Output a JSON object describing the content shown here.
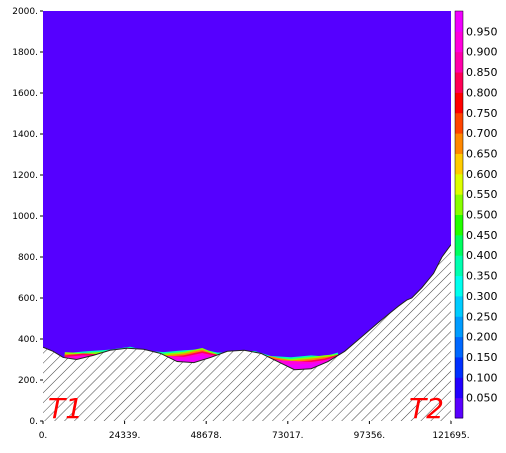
{
  "chart_data": {
    "type": "heatmap",
    "x_ticks": [
      "0.",
      "24339.",
      "48678.",
      "73017.",
      "97356.",
      "121695."
    ],
    "y_ticks": [
      "0.",
      "200.",
      "400.",
      "600.",
      "800.",
      "1000.",
      "1200.",
      "1400.",
      "1600.",
      "1800.",
      "2000."
    ],
    "xlim": [
      0,
      121695
    ],
    "ylim": [
      0,
      2000
    ],
    "background_value": 0.0,
    "background_color": "#5500ff",
    "colorbar": {
      "ticks": [
        "0.050",
        "0.100",
        "0.150",
        "0.200",
        "0.250",
        "0.300",
        "0.350",
        "0.400",
        "0.450",
        "0.500",
        "0.550",
        "0.600",
        "0.650",
        "0.700",
        "0.750",
        "0.800",
        "0.850",
        "0.900",
        "0.950"
      ],
      "colors": [
        "#5a00ff",
        "#2200ff",
        "#0030ff",
        "#0068ff",
        "#009cff",
        "#00ccff",
        "#00ffee",
        "#00ffb0",
        "#00ff60",
        "#22ff00",
        "#88ff00",
        "#ddff00",
        "#ffcc00",
        "#ff8800",
        "#ff4400",
        "#ff0000",
        "#ff0055",
        "#ff00aa",
        "#ff00dd",
        "#ee00ff"
      ],
      "range": [
        0,
        1
      ]
    },
    "terrain_profile": {
      "x": [
        0,
        3000,
        6000,
        10000,
        15000,
        20000,
        25000,
        30000,
        35000,
        40000,
        45000,
        50000,
        55000,
        60000,
        65000,
        70000,
        75000,
        80000,
        85000,
        90000,
        95000,
        100000,
        103000,
        106000,
        108500,
        110000,
        113000,
        116500,
        119000,
        121695
      ],
      "y": [
        360,
        340,
        310,
        300,
        320,
        345,
        355,
        350,
        330,
        290,
        285,
        310,
        340,
        345,
        330,
        290,
        250,
        255,
        290,
        340,
        410,
        480,
        520,
        560,
        590,
        600,
        650,
        720,
        800,
        860
      ]
    },
    "filled_region": {
      "value": 1.0,
      "x": [
        6500,
        12000,
        20000,
        26000,
        31000,
        36000,
        42000,
        47500,
        52000,
        57500,
        63000,
        68000,
        74000,
        80000,
        84000,
        88000
      ],
      "top": [
        300,
        305,
        310,
        320,
        310,
        300,
        305,
        320,
        300,
        295,
        300,
        285,
        275,
        280,
        285,
        300
      ],
      "bottom": [
        275,
        265,
        275,
        300,
        245,
        205,
        200,
        270,
        260,
        200,
        160,
        130,
        145,
        195,
        240,
        280
      ]
    },
    "annotations": [
      "T1",
      "T2"
    ]
  }
}
